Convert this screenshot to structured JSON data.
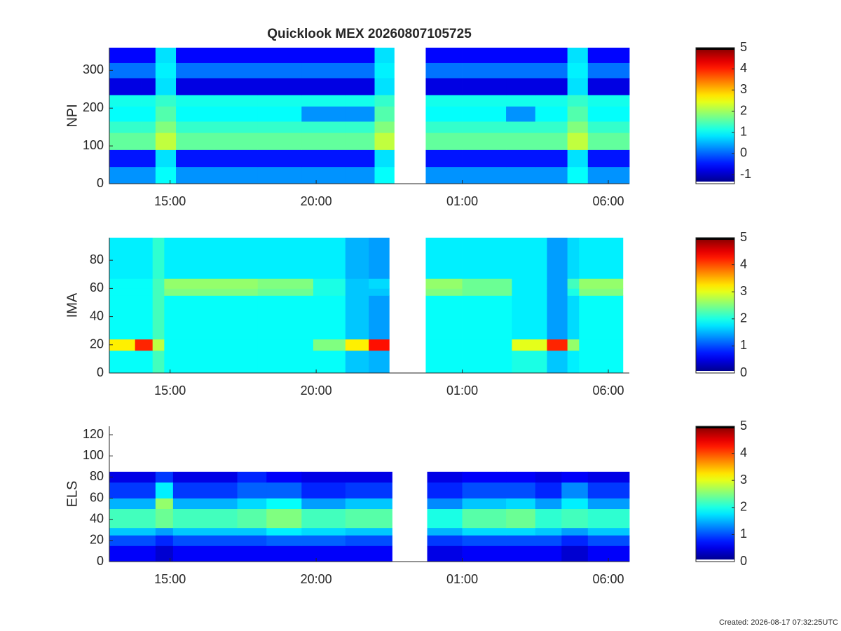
{
  "chart_data": [
    {
      "type": "heatmap",
      "title": "Quicklook MEX 20260807105725",
      "ylabel": "NPI",
      "colormap": "jet",
      "x_edges": [
        12.92,
        14,
        14.5,
        15.2,
        16.5,
        18,
        19.5,
        21,
        22,
        22.67,
        23.75,
        25,
        26.5,
        27.5,
        28.6,
        29.3,
        30.72
      ],
      "y_edges": [
        0,
        45,
        90,
        135,
        165,
        205,
        235,
        280,
        320,
        360
      ],
      "values": [
        [
          0.3,
          0.3,
          1.0,
          0.3,
          0.3,
          0.3,
          0.3,
          0.3,
          1.0,
          null,
          0.3,
          0.3,
          0.3,
          0.3,
          1.0,
          0.3
        ],
        [
          -0.5,
          -0.5,
          0.8,
          -0.5,
          -0.5,
          -0.5,
          -0.5,
          -0.5,
          0.8,
          null,
          -0.5,
          -0.5,
          -0.5,
          -0.5,
          0.8,
          -0.5
        ],
        [
          1.6,
          1.6,
          2.2,
          1.6,
          1.6,
          1.6,
          1.6,
          1.6,
          2.2,
          null,
          1.6,
          1.6,
          1.6,
          1.6,
          2.2,
          1.6
        ],
        [
          1.3,
          1.3,
          1.8,
          1.3,
          1.3,
          1.3,
          1.3,
          1.3,
          1.8,
          null,
          1.3,
          1.3,
          1.3,
          1.3,
          1.8,
          1.3
        ],
        [
          1.0,
          1.0,
          1.5,
          1.0,
          1.0,
          1.0,
          0.3,
          0.3,
          1.5,
          null,
          1.0,
          1.0,
          0.3,
          1.0,
          1.5,
          1.0
        ],
        [
          1.1,
          1.1,
          1.3,
          1.1,
          1.1,
          1.1,
          1.1,
          1.1,
          1.3,
          null,
          1.1,
          1.1,
          1.1,
          1.1,
          1.3,
          1.1
        ],
        [
          -0.8,
          -0.8,
          0.8,
          -0.8,
          -0.8,
          -0.8,
          -0.8,
          -0.8,
          0.8,
          null,
          -0.8,
          -0.8,
          -0.8,
          -0.8,
          0.8,
          -0.8
        ],
        [
          0.1,
          0.1,
          0.9,
          0.1,
          0.1,
          0.1,
          0.1,
          0.1,
          0.9,
          null,
          0.1,
          0.1,
          0.1,
          0.1,
          0.9,
          0.1
        ],
        [
          -0.6,
          -0.6,
          0.8,
          -0.6,
          -0.6,
          -0.6,
          -0.6,
          -0.6,
          0.8,
          null,
          -0.6,
          -0.6,
          -0.6,
          -0.6,
          0.8,
          -0.6
        ]
      ],
      "xlim": [
        12.92,
        30.72
      ],
      "xticks": [
        {
          "value": 15,
          "label": "15:00"
        },
        {
          "value": 20,
          "label": "20:00"
        },
        {
          "value": 25,
          "label": "01:00"
        },
        {
          "value": 30,
          "label": "06:00"
        }
      ],
      "ylim": [
        0,
        360
      ],
      "yticks": [
        0,
        100,
        200,
        300
      ],
      "clim": [
        -1.43,
        5
      ],
      "cticks": [
        -1,
        0,
        1,
        2,
        3,
        4,
        5
      ]
    },
    {
      "type": "heatmap",
      "ylabel": "IMA",
      "colormap": "jet",
      "x_edges": [
        12.92,
        13.8,
        14.4,
        14.8,
        16.5,
        18,
        19.9,
        21,
        21.8,
        22.5,
        23.75,
        25,
        26.7,
        27.9,
        28.6,
        29,
        30.5
      ],
      "y_edges": [
        0,
        16,
        24,
        55,
        60,
        67,
        96
      ],
      "values": [
        [
          1.9,
          1.9,
          2.2,
          1.9,
          1.9,
          1.9,
          1.9,
          1.6,
          1.5,
          null,
          1.9,
          1.9,
          2.0,
          1.6,
          1.8,
          1.9
        ],
        [
          3.2,
          4.2,
          2.8,
          1.9,
          1.9,
          1.9,
          2.5,
          3.2,
          4.3,
          null,
          1.9,
          1.9,
          3.0,
          4.2,
          2.6,
          1.9
        ],
        [
          1.9,
          1.9,
          2.2,
          1.9,
          1.9,
          1.9,
          1.9,
          1.6,
          1.4,
          null,
          1.9,
          1.9,
          1.8,
          1.4,
          1.7,
          1.9
        ],
        [
          1.9,
          1.9,
          2.2,
          2.5,
          2.5,
          2.4,
          2.0,
          1.6,
          1.6,
          null,
          2.5,
          2.4,
          1.8,
          1.4,
          2.0,
          2.5
        ],
        [
          1.9,
          1.9,
          2.2,
          2.6,
          2.6,
          2.5,
          2.0,
          1.6,
          1.7,
          null,
          2.6,
          2.4,
          1.8,
          1.4,
          2.2,
          2.6
        ],
        [
          1.8,
          1.8,
          2.1,
          1.8,
          1.8,
          1.8,
          1.8,
          1.5,
          1.4,
          null,
          1.8,
          1.8,
          1.8,
          1.4,
          1.7,
          1.8
        ]
      ],
      "xlim": [
        12.92,
        30.72
      ],
      "xticks": [
        {
          "value": 15,
          "label": "15:00"
        },
        {
          "value": 20,
          "label": "20:00"
        },
        {
          "value": 25,
          "label": "01:00"
        },
        {
          "value": 30,
          "label": "06:00"
        }
      ],
      "ylim": [
        0,
        96
      ],
      "yticks": [
        0,
        20,
        40,
        60,
        80
      ],
      "clim": [
        0,
        5
      ],
      "cticks": [
        0,
        1,
        2,
        3,
        4,
        5
      ]
    },
    {
      "type": "heatmap",
      "ylabel": "ELS",
      "colormap": "jet",
      "x_edges": [
        12.92,
        14.5,
        15.1,
        17.3,
        18.3,
        19.5,
        21,
        22.6,
        23.8,
        25,
        26.5,
        27.5,
        28.4,
        29.3,
        30.72
      ],
      "y_edges": [
        0,
        15,
        25,
        32,
        50,
        60,
        75,
        85,
        128
      ],
      "values": [
        [
          0.6,
          0.4,
          0.6,
          0.6,
          0.6,
          0.6,
          0.6,
          null,
          0.5,
          0.6,
          0.6,
          0.6,
          0.4,
          0.6
        ],
        [
          1.0,
          0.8,
          1.0,
          1.0,
          1.1,
          1.1,
          1.0,
          null,
          0.9,
          1.0,
          1.0,
          1.0,
          0.8,
          1.0
        ],
        [
          1.6,
          1.4,
          1.6,
          1.6,
          1.8,
          1.7,
          1.6,
          null,
          1.5,
          1.7,
          1.7,
          1.6,
          1.4,
          1.6
        ],
        [
          2.2,
          2.4,
          2.2,
          2.3,
          2.5,
          2.2,
          2.3,
          null,
          2.0,
          2.3,
          2.4,
          2.1,
          2.2,
          2.1
        ],
        [
          1.5,
          2.6,
          1.5,
          1.7,
          1.9,
          1.4,
          1.6,
          null,
          1.3,
          1.6,
          1.7,
          1.4,
          1.8,
          1.4
        ],
        [
          0.9,
          1.8,
          0.9,
          1.1,
          1.1,
          0.8,
          0.9,
          null,
          0.8,
          1.0,
          1.0,
          0.8,
          1.3,
          0.9
        ],
        [
          0.5,
          0.9,
          0.5,
          0.8,
          0.6,
          0.5,
          0.5,
          null,
          0.5,
          0.6,
          0.6,
          0.5,
          0.6,
          0.5
        ],
        [
          null,
          null,
          null,
          null,
          null,
          null,
          null,
          null,
          null,
          null,
          null,
          null,
          null,
          null
        ]
      ],
      "xlim": [
        12.92,
        30.72
      ],
      "xticks": [
        {
          "value": 15,
          "label": "15:00"
        },
        {
          "value": 20,
          "label": "20:00"
        },
        {
          "value": 25,
          "label": "01:00"
        },
        {
          "value": 30,
          "label": "06:00"
        }
      ],
      "ylim": [
        0,
        128
      ],
      "yticks": [
        0,
        20,
        40,
        60,
        80,
        100,
        120
      ],
      "clim": [
        0,
        5
      ],
      "cticks": [
        0,
        1,
        2,
        3,
        4,
        5
      ]
    }
  ],
  "footer": "Created: 2026-08-17 07:32:25UTC"
}
